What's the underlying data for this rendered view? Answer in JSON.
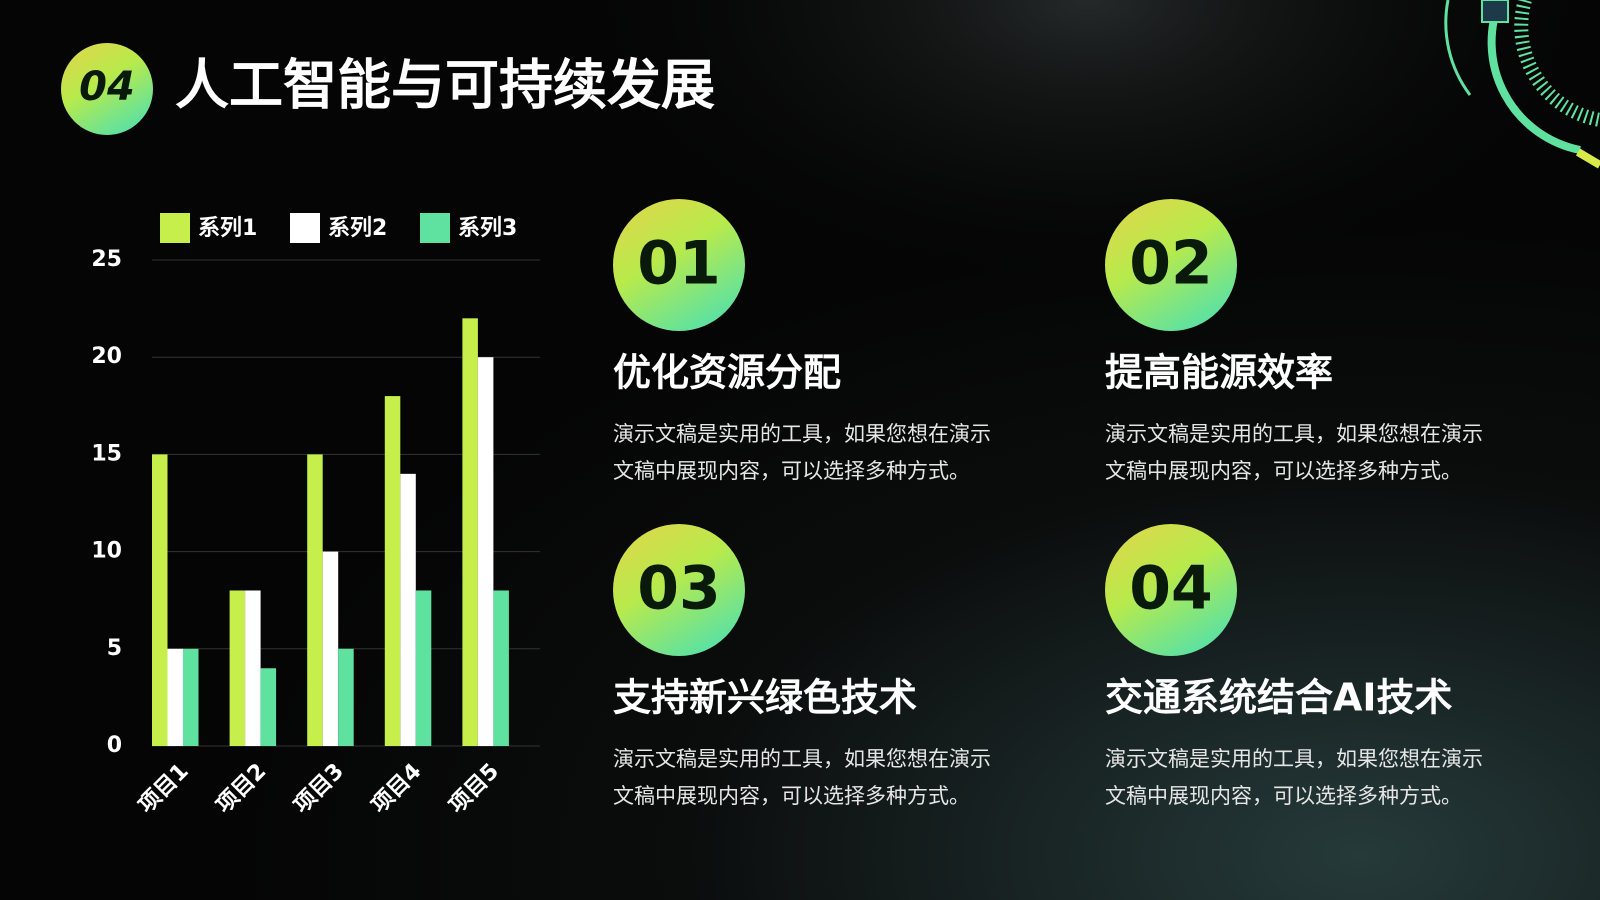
{
  "header": {
    "badge": "04",
    "title": "人工智能与可持续发展"
  },
  "chart_data": {
    "type": "bar",
    "categories": [
      "项目1",
      "项目2",
      "项目3",
      "项目4",
      "项目5"
    ],
    "series": [
      {
        "name": "系列1",
        "color": "#c6ef4b",
        "values": [
          15,
          8,
          15,
          18,
          22
        ]
      },
      {
        "name": "系列2",
        "color": "#ffffff",
        "values": [
          5,
          8,
          10,
          14,
          20
        ]
      },
      {
        "name": "系列3",
        "color": "#5fe29f",
        "values": [
          5,
          4,
          5,
          8,
          8
        ]
      }
    ],
    "ylim": [
      0,
      25
    ],
    "yticks": [
      0,
      5,
      10,
      15,
      20,
      25
    ],
    "grid": true,
    "legend": "top"
  },
  "items": [
    {
      "number": "01",
      "title": "优化资源分配",
      "body": [
        "演示文稿是实用的工具，如果您想在演示",
        "文稿中展现内容，可以选择多种方式。"
      ]
    },
    {
      "number": "02",
      "title": "提高能源效率",
      "body": [
        "演示文稿是实用的工具，如果您想在演示",
        "文稿中展现内容，可以选择多种方式。"
      ]
    },
    {
      "number": "03",
      "title": "支持新兴绿色技术",
      "body": [
        "演示文稿是实用的工具，如果您想在演示",
        "文稿中展现内容，可以选择多种方式。"
      ]
    },
    {
      "number": "04",
      "title": "交通系统结合AI技术",
      "body": [
        "演示文稿是实用的工具，如果您想在演示",
        "文稿中展现内容，可以选择多种方式。"
      ]
    }
  ]
}
